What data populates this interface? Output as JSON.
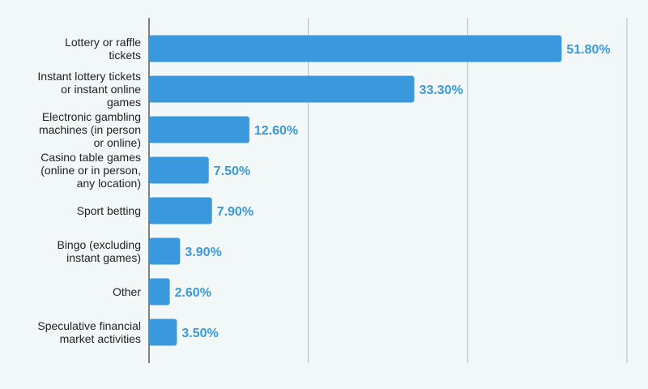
{
  "chart_data": {
    "type": "bar",
    "orientation": "horizontal",
    "categories": [
      [
        "Lottery or raffle",
        "tickets"
      ],
      [
        "Instant lottery tickets",
        "or instant online",
        "games"
      ],
      [
        "Electronic gambling",
        "machines (in person",
        "or online)"
      ],
      [
        "Casino table games",
        "(online or in person,",
        "any location)"
      ],
      [
        "Sport betting"
      ],
      [
        "Bingo (excluding",
        "instant games)"
      ],
      [
        "Other"
      ],
      [
        "Speculative financial",
        "market activities"
      ]
    ],
    "values": [
      51.8,
      33.3,
      12.6,
      7.5,
      7.9,
      3.9,
      2.6,
      3.5
    ],
    "value_labels": [
      "51.80%",
      "33.30%",
      "12.60%",
      "7.50%",
      "7.90%",
      "3.90%",
      "2.60%",
      "3.50%"
    ],
    "xlim": [
      0,
      60
    ],
    "grid": true,
    "bar_color": "#3a99dc",
    "label_color": "#3a99dc",
    "background": "#f2f7f8",
    "gridline_color": "#9a9a9a"
  }
}
